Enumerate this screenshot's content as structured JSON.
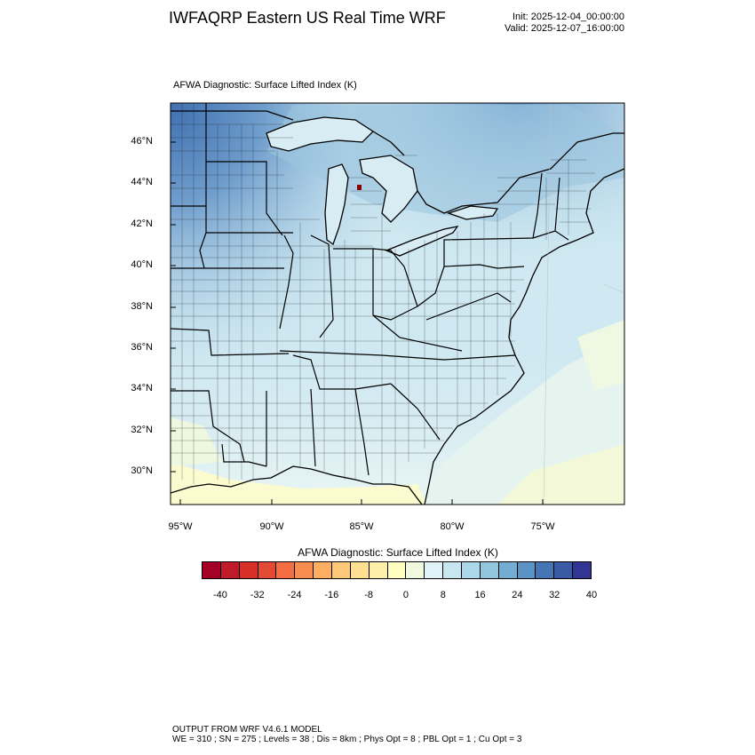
{
  "header": {
    "title": "IWFAQRP Eastern US Real Time WRF",
    "init": "Init: 2025-12-04_00:00:00",
    "valid": "Valid: 2025-12-07_16:00:00"
  },
  "plot": {
    "field_label": "AFWA Diagnostic: Surface Lifted Index   (K)",
    "lat_labels": [
      "46°N",
      "44°N",
      "42°N",
      "40°N",
      "38°N",
      "36°N",
      "34°N",
      "32°N",
      "30°N"
    ],
    "lon_labels": [
      "95°W",
      "90°W",
      "85°W",
      "80°W",
      "75°W"
    ]
  },
  "colorbar": {
    "title": "AFWA Diagnostic: Surface Lifted Index  (K)",
    "colors": [
      "#a50026",
      "#c11a28",
      "#d73027",
      "#e34a33",
      "#f46d43",
      "#f88d52",
      "#fdae61",
      "#fdc978",
      "#fee090",
      "#fef0a8",
      "#ffffbf",
      "#f0f9dc",
      "#e0f3f8",
      "#c6e6f0",
      "#abd9e9",
      "#92c5de",
      "#74add1",
      "#5b93c4",
      "#4575b4",
      "#3a5aa6",
      "#313695"
    ],
    "labels": [
      "-40",
      "-32",
      "-24",
      "-16",
      "-8",
      "0",
      "8",
      "16",
      "24",
      "32",
      "40"
    ]
  },
  "footer": {
    "line1": "OUTPUT FROM WRF V4.6.1 MODEL",
    "line2": "WE = 310 ; SN = 275 ; Levels = 38 ; Dis = 8km ; Phys Opt = 8 ; PBL Opt = 1 ; Cu Opt = 3"
  }
}
